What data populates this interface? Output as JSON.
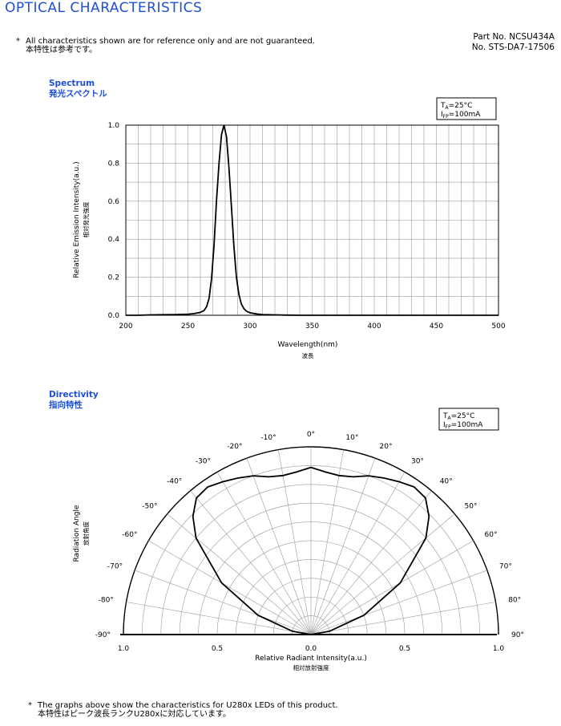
{
  "header": {
    "title": "OPTICAL CHARACTERISTICS",
    "note_marker": "*",
    "note_en": "All characteristics shown are for reference only and are not guaranteed.",
    "note_jp": "本特性は参考です。",
    "part_no": "Part No. NCSU434A",
    "doc_no": "No. STS-DA7-17506"
  },
  "spectrum": {
    "title_en": "Spectrum",
    "title_jp": "発光スペクトル",
    "condition_ta": "T",
    "condition_ta_sub": "A",
    "condition_ta_value": "=25°C",
    "condition_ifp": "I",
    "condition_ifp_sub": "FP",
    "condition_ifp_value": "=100mA"
  },
  "directivity": {
    "title_en": "Directivity",
    "title_jp": "指向特性",
    "condition_ta": "T",
    "condition_ta_sub": "A",
    "condition_ta_value": "=25°C",
    "condition_ifp": "I",
    "condition_ifp_sub": "FP",
    "condition_ifp_value": "=100mA"
  },
  "footer": {
    "note_marker": "*",
    "note_en": "The graphs above show the characteristics for U280x LEDs of this product.",
    "note_jp": "本特性はピーク波長ランクU280xに対応しています。"
  },
  "chart_data": [
    {
      "type": "line",
      "title": "Spectrum",
      "xlabel": "Wavelength(nm)",
      "xlabel_jp": "波長",
      "ylabel": "Relative Emission Intensity(a.u.)",
      "ylabel_jp": "相対発光強度",
      "xlim": [
        200,
        500
      ],
      "ylim": [
        0,
        1.0
      ],
      "x_ticks": [
        200,
        250,
        300,
        350,
        400,
        450,
        500
      ],
      "x_tick_labels": [
        "200",
        "250",
        "300",
        "350",
        "400",
        "450",
        "500"
      ],
      "y_ticks": [
        0,
        0.2,
        0.4,
        0.6,
        0.8,
        1.0
      ],
      "y_tick_labels": [
        "0.0",
        "0.2",
        "0.4",
        "0.6",
        "0.8",
        "1.0"
      ],
      "x_minor_step": 10,
      "y_minor_step": 0.1,
      "grid": true,
      "series": [
        {
          "x": [
            200,
            210,
            220,
            230,
            240,
            250,
            255,
            260,
            263,
            265,
            267,
            269,
            271,
            273,
            275,
            277,
            279,
            281,
            283,
            285,
            287,
            289,
            291,
            293,
            295,
            297,
            300,
            305,
            310,
            320,
            330,
            340,
            360,
            400,
            450,
            500
          ],
          "values": [
            0,
            0,
            0.002,
            0.003,
            0.004,
            0.006,
            0.009,
            0.015,
            0.025,
            0.045,
            0.09,
            0.19,
            0.37,
            0.6,
            0.8,
            0.95,
            1.0,
            0.94,
            0.78,
            0.57,
            0.36,
            0.2,
            0.11,
            0.06,
            0.035,
            0.022,
            0.013,
            0.007,
            0.004,
            0.002,
            0.001,
            0,
            0,
            0,
            0,
            0
          ]
        }
      ]
    },
    {
      "type": "polar",
      "title": "Directivity",
      "xlabel": "Relative Radiant Intensity(a.u.)",
      "xlabel_jp": "相対放射強度",
      "ylabel": "Radiation Angle",
      "ylabel_jp": "放射角度",
      "radial_ticks": [
        "1.0",
        "0.5",
        "0.0",
        "0.5",
        "1.0"
      ],
      "angle_labels": [
        "-90°",
        "-80°",
        "-70°",
        "-60°",
        "-50°",
        "-40°",
        "-30°",
        "-20°",
        "-10°",
        "0°",
        "10°",
        "20°",
        "30°",
        "40°",
        "50°",
        "60°",
        "70°",
        "80°",
        "90°"
      ],
      "grid": true,
      "series": [
        {
          "angles": [
            -90,
            -80,
            -70,
            -60,
            -50,
            -45,
            -40,
            -35,
            -30,
            -25,
            -20,
            -15,
            -10,
            -5,
            0,
            5,
            10,
            15,
            20,
            25,
            30,
            35,
            40,
            45,
            50,
            60,
            70,
            80,
            90
          ],
          "values": [
            0,
            0.1,
            0.3,
            0.55,
            0.8,
            0.89,
            0.95,
            0.96,
            0.94,
            0.92,
            0.9,
            0.87,
            0.86,
            0.87,
            0.89,
            0.87,
            0.86,
            0.87,
            0.9,
            0.92,
            0.94,
            0.96,
            0.95,
            0.89,
            0.8,
            0.55,
            0.3,
            0.1,
            0
          ]
        }
      ]
    }
  ]
}
